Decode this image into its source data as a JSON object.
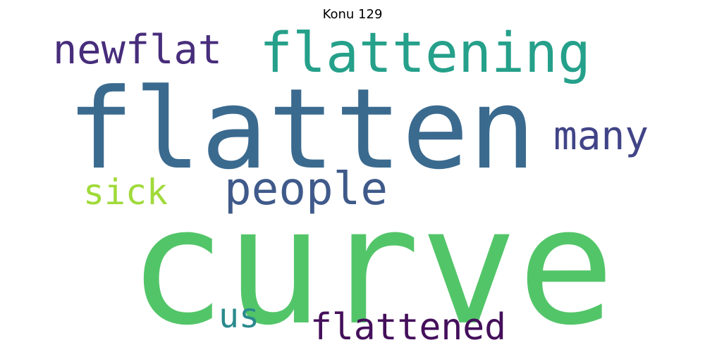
{
  "chart_data": {
    "type": "wordcloud",
    "title": "Konu 129",
    "words": [
      {
        "text": "curve",
        "weight": 1.0,
        "color": "#53c569"
      },
      {
        "text": "flatten",
        "weight": 0.86,
        "color": "#3b6a8f"
      },
      {
        "text": "flattening",
        "weight": 0.44,
        "color": "#25a08a"
      },
      {
        "text": "newflat",
        "weight": 0.3,
        "color": "#472d7b"
      },
      {
        "text": "people",
        "weight": 0.33,
        "color": "#3f5a8a"
      },
      {
        "text": "many",
        "weight": 0.3,
        "color": "#414487"
      },
      {
        "text": "sick",
        "weight": 0.25,
        "color": "#a0da39"
      },
      {
        "text": "flattened",
        "weight": 0.3,
        "color": "#440f5b"
      },
      {
        "text": "us",
        "weight": 0.25,
        "color": "#2a8a8c"
      }
    ]
  }
}
